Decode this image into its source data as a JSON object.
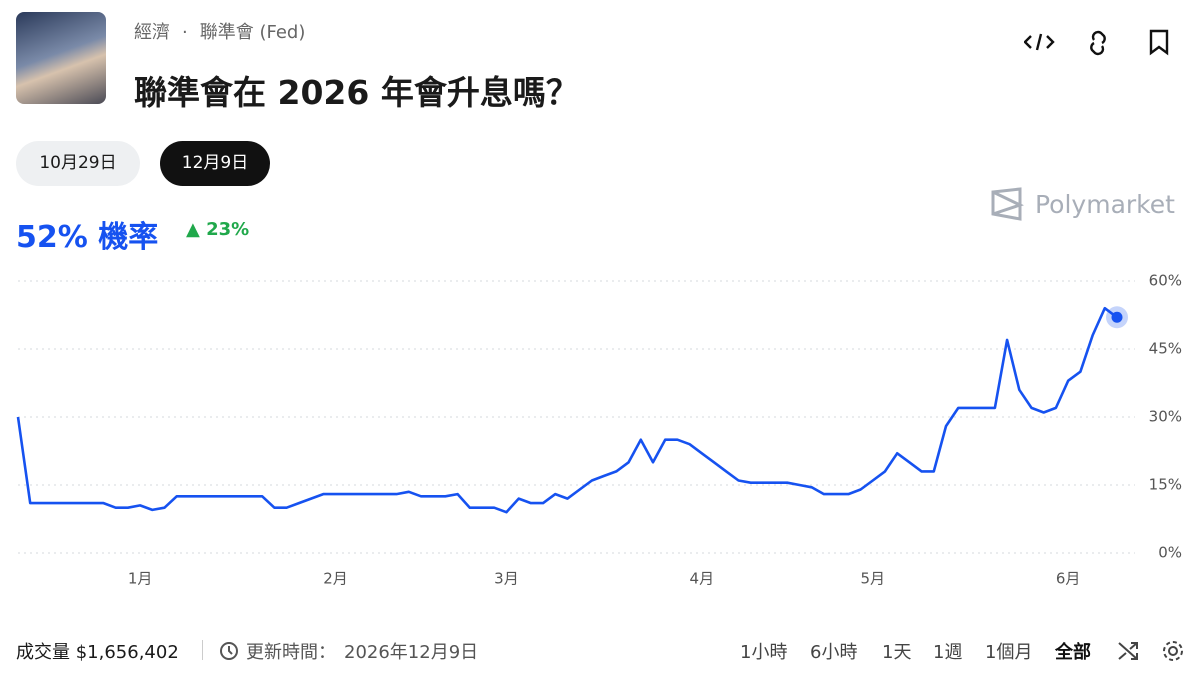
{
  "header": {
    "breadcrumb": [
      "經濟",
      "·",
      "聯準會 (Fed)"
    ],
    "title": "聯準會在 2026 年會升息嗎？"
  },
  "tabs": [
    "10月29日",
    "12月9日"
  ],
  "market": {
    "probability": "52% 機率",
    "change": "23%",
    "brand": "Polymarket"
  },
  "chart_data": {
    "type": "line",
    "categories": [
      null,
      null,
      null,
      null,
      null,
      null,
      null,
      null,
      null,
      null,
      "1月",
      null,
      null,
      null,
      null,
      null,
      null,
      null,
      null,
      null,
      null,
      null,
      null,
      null,
      null,
      null,
      "2月",
      null,
      null,
      null,
      null,
      null,
      null,
      null,
      null,
      null,
      null,
      null,
      null,
      null,
      "3月",
      null,
      null,
      null,
      null,
      null,
      null,
      null,
      null,
      null,
      null,
      null,
      null,
      null,
      null,
      null,
      "4月",
      null,
      null,
      null,
      null,
      null,
      null,
      null,
      null,
      null,
      null,
      null,
      null,
      null,
      "5月",
      null,
      null,
      null,
      null,
      null,
      null,
      null,
      null,
      null,
      null,
      null,
      null,
      null,
      null,
      null,
      "6月",
      null,
      null,
      null,
      null
    ],
    "series": [
      {
        "name": "機率",
        "color": "#1652f0",
        "values": [
          30,
          11,
          11,
          11,
          11,
          11,
          11,
          11,
          10,
          10,
          10.5,
          9.5,
          10,
          12.5,
          12.5,
          12.5,
          12.5,
          12.5,
          12.5,
          12.5,
          12.5,
          10,
          10,
          11,
          12,
          13,
          13,
          13,
          13,
          13,
          13,
          13,
          13.5,
          12.5,
          12.5,
          12.5,
          13,
          10,
          10,
          10,
          9,
          12,
          11,
          11,
          13,
          12,
          14,
          16,
          17,
          18,
          20,
          25,
          20,
          25,
          25,
          24,
          22,
          20,
          18,
          16,
          15.5,
          15.5,
          15.5,
          15.5,
          15,
          14.5,
          13,
          13,
          13,
          14,
          16,
          18,
          22,
          20,
          18,
          18,
          28,
          32,
          32,
          32,
          32,
          47,
          36,
          32,
          31,
          32,
          38,
          40,
          48,
          54,
          52
        ]
      }
    ],
    "ylim": [
      0,
      60
    ],
    "yticks": [
      {
        "value": 0,
        "label": "0%"
      },
      {
        "value": 15,
        "label": "15%"
      },
      {
        "value": 30,
        "label": "30%"
      },
      {
        "value": 45,
        "label": "45%"
      },
      {
        "value": 60,
        "label": "60%"
      }
    ],
    "grid": true
  },
  "footer": {
    "volume": "成交量 $1,656,402",
    "updated_label": "更新時間：",
    "updated": "2026年12月9日",
    "ranges": [
      "1小時",
      "6小時",
      "1天",
      "1週",
      "1個月",
      "全部"
    ]
  }
}
